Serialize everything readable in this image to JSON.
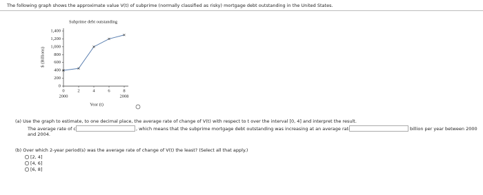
{
  "header": {
    "text": "The following graph shows the approximate value V(t) of subprime (normally classified as risky) mortgage debt outstanding in the United States."
  },
  "chart_data": {
    "type": "line",
    "title": "Subprime debt outstanding",
    "ylabel": "$ (Billions)",
    "xlabel": "Year (t)",
    "x": [
      0,
      2,
      4,
      6,
      8
    ],
    "series": [
      {
        "color": "#5a7fb0",
        "values": [
          400,
          450,
          1000,
          1200,
          1300
        ]
      }
    ],
    "xlim": [
      0,
      8
    ],
    "xticks": [
      0,
      2,
      4,
      6,
      8
    ],
    "ylim": [
      0,
      1400
    ],
    "yticks": [
      0,
      200,
      400,
      600,
      800,
      {
        "value": 1000,
        "label": "1,000"
      },
      {
        "value": 1200,
        "label": "1,200"
      },
      {
        "value": 1400,
        "label": "1,400"
      }
    ],
    "annotations": [
      {
        "x": 0,
        "text": "2000"
      },
      {
        "x": 8,
        "text": "2008"
      }
    ]
  },
  "part_a": {
    "question": "(a) Use the graph to estimate, to one decimal place, the average rate of change of V(t) with respect to t over the interval [0, 4] and interpret the result.",
    "answer_prefix": "The average rate of change is",
    "answer_middle": ", which means that the subprime mortgage debt outstanding was increasing at an average rate of around $",
    "answer_suffix": "billion per year between 2000",
    "answer_end": "and 2004."
  },
  "part_b": {
    "question": "(b) Over which 2-year period(s) was the average rate of change of V(t) the least? (Select all that apply.)",
    "options": [
      "[2, 4]",
      "[4, 6]",
      "[6, 8]"
    ]
  }
}
